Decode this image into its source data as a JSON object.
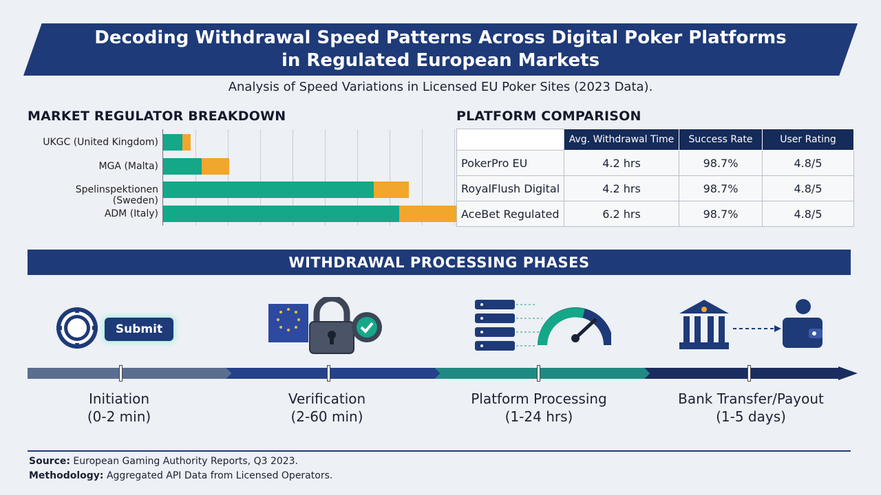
{
  "header": {
    "title_line1": "Decoding Withdrawal Speed Patterns Across Digital Poker Platforms",
    "title_line2": "in Regulated European Markets",
    "subtitle": "Analysis of Speed Variations in Licensed EU Poker Sites (2023 Data)."
  },
  "regulator_section": {
    "title": "MARKET REGULATOR BREAKDOWN"
  },
  "chart_data": {
    "type": "bar",
    "orientation": "horizontal",
    "stacked": true,
    "categories": [
      "UKGC (United Kingdom)",
      "MGA (Malta)",
      "Spelinspektionen (Sweden)",
      "ADM (Italy)"
    ],
    "series": [
      {
        "values": [
          0.6,
          1.2,
          6.5,
          7.3
        ],
        "color": "#14a889"
      },
      {
        "values": [
          0.25,
          0.85,
          1.1,
          2.5
        ],
        "color": "#f0a72c"
      }
    ],
    "xlim": [
      0,
      10
    ],
    "grid": true,
    "legend": "none"
  },
  "comparison_section": {
    "title": "PLATFORM COMPARISON",
    "columns": [
      "",
      "Avg. Withdrawal Time",
      "Success Rate",
      "User Rating"
    ],
    "rows": [
      {
        "name": "PokerPro EU",
        "time": "4.2 hrs",
        "success": "98.7%",
        "rating": "4.8/5"
      },
      {
        "name": "RoyalFlush Digital",
        "time": "4.2 hrs",
        "success": "98.7%",
        "rating": "4.8/5"
      },
      {
        "name": "AceBet Regulated",
        "time": "6.2 hrs",
        "success": "98.7%",
        "rating": "4.8/5"
      }
    ]
  },
  "phases": {
    "title": "WITHDRAWAL PROCESSING PHASES",
    "submit_label": "Submit",
    "items": [
      {
        "name": "Initiation",
        "range": "(0-2 min)",
        "color": "#5a6e90",
        "icon": "poker-chip-icon"
      },
      {
        "name": "Verification",
        "range": "(2-60 min)",
        "color": "#25418a",
        "icon": "lock-icon"
      },
      {
        "name": "Platform Processing",
        "range": "(1-24 hrs)",
        "color": "#1f8a82",
        "icon": "server-gauge-icon"
      },
      {
        "name": "Bank Transfer/Payout",
        "range": "(1-5 days)",
        "color": "#1a2d5e",
        "icon": "bank-wallet-icon"
      }
    ]
  },
  "footer": {
    "source_label": "Source:",
    "source_text": "European Gaming Authority Reports, Q3 2023.",
    "method_label": "Methodology:",
    "method_text": "Aggregated API Data from Licensed Operators."
  }
}
